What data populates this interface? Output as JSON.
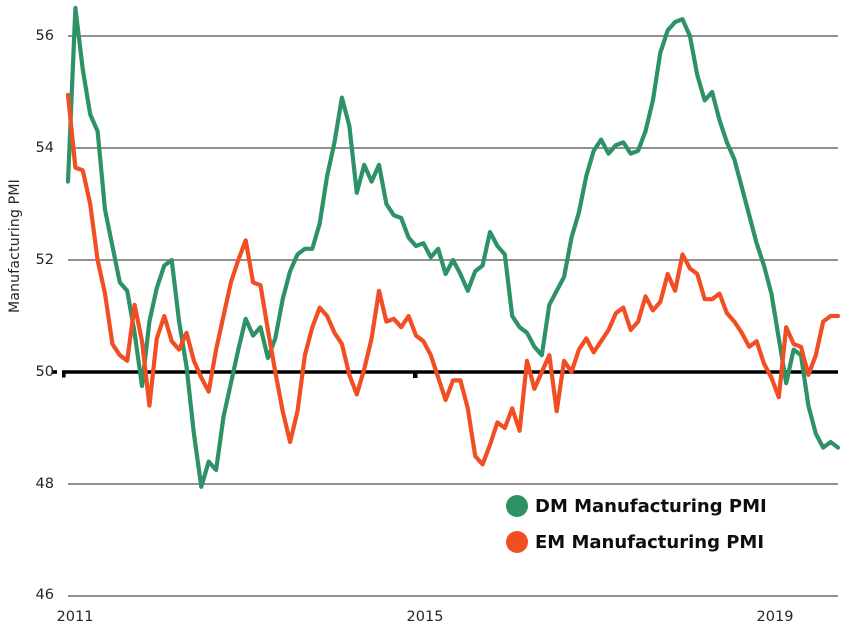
{
  "chart_data": {
    "type": "line",
    "title": "",
    "xlabel": "",
    "ylabel": "Manufacturing PMI",
    "x_frequency": "monthly",
    "x_range": [
      "2011-01",
      "2019-09"
    ],
    "x_tick_labels": [
      "2011",
      "2015",
      "2019"
    ],
    "y_tick_labels": [
      "46",
      "48",
      "50",
      "52",
      "54",
      "56"
    ],
    "y_ticks": [
      46,
      48,
      50,
      52,
      54,
      56
    ],
    "ylim": [
      46,
      56.64
    ],
    "baseline_value": 50,
    "grid": true,
    "legend_position": "bottom-right",
    "colors": {
      "grid": "#4f4f4f",
      "baseline": "#000000",
      "tick_text": "#262626"
    },
    "series": [
      {
        "name": "DM Manufacturing PMI",
        "color": "#2E9267",
        "values": [
          53.4,
          56.5,
          55.4,
          54.6,
          54.3,
          52.9,
          52.25,
          51.6,
          51.45,
          50.7,
          49.75,
          50.9,
          51.5,
          51.9,
          52.0,
          50.9,
          50.1,
          48.9,
          47.95,
          48.4,
          48.25,
          49.2,
          49.8,
          50.4,
          50.95,
          50.65,
          50.8,
          50.25,
          50.6,
          51.3,
          51.8,
          52.1,
          52.2,
          52.2,
          52.65,
          53.5,
          54.1,
          54.9,
          54.4,
          53.2,
          53.7,
          53.4,
          53.7,
          53.0,
          52.8,
          52.75,
          52.4,
          52.25,
          52.3,
          52.05,
          52.2,
          51.75,
          52.0,
          51.75,
          51.45,
          51.8,
          51.9,
          52.5,
          52.25,
          52.1,
          51.0,
          50.8,
          50.7,
          50.45,
          50.3,
          51.2,
          51.45,
          51.7,
          52.4,
          52.85,
          53.5,
          53.95,
          54.15,
          53.9,
          54.05,
          54.1,
          53.9,
          53.95,
          54.3,
          54.85,
          55.7,
          56.1,
          56.25,
          56.3,
          56.0,
          55.3,
          54.85,
          55.0,
          54.5,
          54.1,
          53.8,
          53.3,
          52.8,
          52.3,
          51.9,
          51.4,
          50.6,
          49.8,
          50.4,
          50.3,
          49.4,
          48.9,
          48.65,
          48.75,
          48.65
        ]
      },
      {
        "name": "EM Manufacturing PMI",
        "color": "#F14E23",
        "values": [
          54.95,
          53.65,
          53.6,
          53.0,
          52.0,
          51.4,
          50.5,
          50.3,
          50.2,
          51.2,
          50.55,
          49.4,
          50.6,
          51.0,
          50.55,
          50.4,
          50.7,
          50.2,
          49.9,
          49.65,
          50.4,
          51.0,
          51.6,
          52.0,
          52.35,
          51.6,
          51.55,
          50.75,
          50.0,
          49.3,
          48.75,
          49.3,
          50.3,
          50.8,
          51.15,
          51.0,
          50.7,
          50.5,
          49.95,
          49.6,
          50.05,
          50.6,
          51.45,
          50.9,
          50.95,
          50.8,
          51.0,
          50.65,
          50.55,
          50.3,
          49.9,
          49.5,
          49.85,
          49.85,
          49.35,
          48.5,
          48.35,
          48.7,
          49.1,
          49.0,
          49.35,
          48.95,
          50.2,
          49.7,
          50.0,
          50.3,
          49.3,
          50.2,
          50.0,
          50.4,
          50.6,
          50.35,
          50.55,
          50.75,
          51.05,
          51.15,
          50.75,
          50.9,
          51.35,
          51.1,
          51.25,
          51.75,
          51.45,
          52.1,
          51.85,
          51.75,
          51.3,
          51.3,
          51.4,
          51.05,
          50.9,
          50.7,
          50.45,
          50.55,
          50.15,
          49.9,
          49.55,
          50.8,
          50.5,
          50.45,
          49.95,
          50.3,
          50.9,
          51.0,
          51.0
        ]
      }
    ]
  },
  "legend": {
    "items": [
      {
        "label": "DM Manufacturing PMI",
        "color": "#2E9267"
      },
      {
        "label": "EM Manufacturing PMI",
        "color": "#F14E23"
      }
    ]
  }
}
